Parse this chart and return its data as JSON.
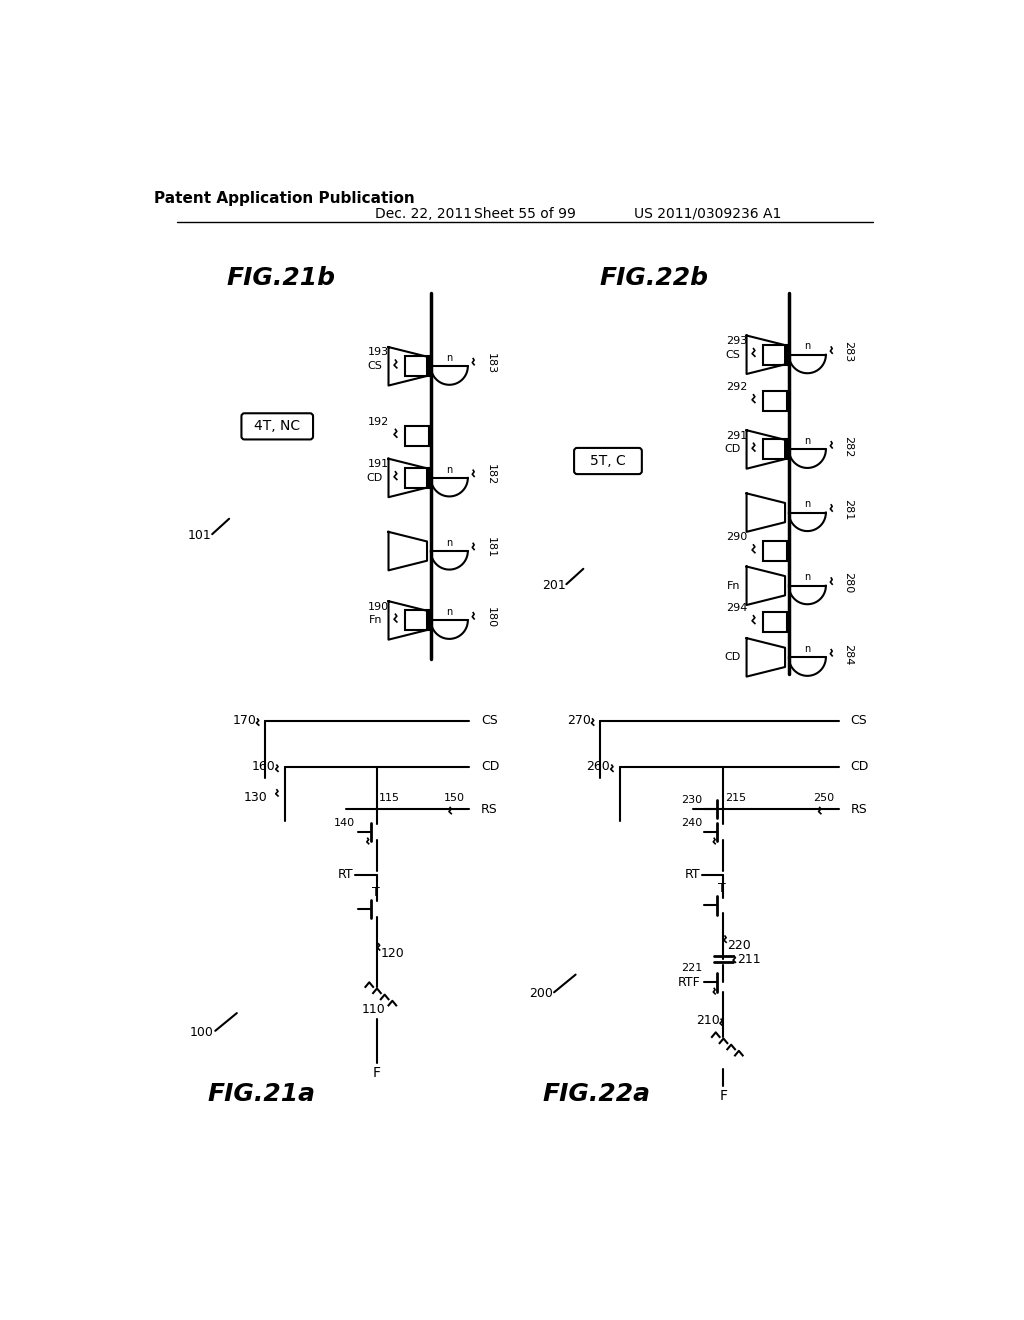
{
  "bg": "#ffffff",
  "header_title": "Patent Application Publication",
  "header_date": "Dec. 22, 2011",
  "header_sheet": "Sheet 55 of 99",
  "header_patent": "US 2011/0309236 A1",
  "fig21b_title": "FIG.21b",
  "fig22b_title": "FIG.22b",
  "fig21a_title": "FIG.21a",
  "fig22a_title": "FIG.22a",
  "label_4t_nc": "4T, NC",
  "label_5t_c": "5T, C"
}
